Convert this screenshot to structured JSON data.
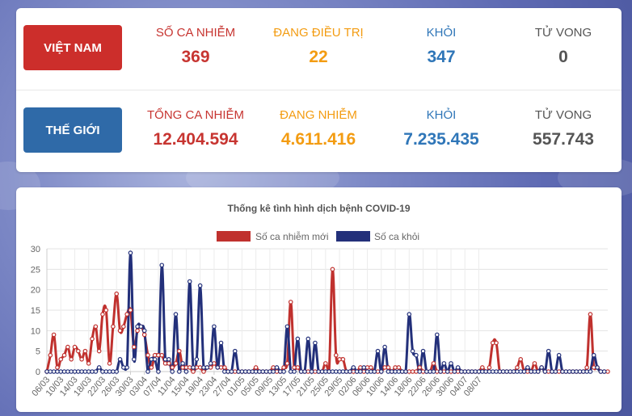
{
  "vietnam": {
    "label": "VIỆT NAM",
    "stats": [
      {
        "label": "SỐ CA NHIỄM",
        "value": "369"
      },
      {
        "label": "ĐANG ĐIỀU TRỊ",
        "value": "22"
      },
      {
        "label": "KHỎI",
        "value": "347"
      },
      {
        "label": "TỬ VONG",
        "value": "0"
      }
    ]
  },
  "world": {
    "label": "THẾ GIỚI",
    "stats": [
      {
        "label": "TỔNG CA NHIỄM",
        "value": "12.404.594"
      },
      {
        "label": "ĐANG NHIỄM",
        "value": "4.611.416"
      },
      {
        "label": "KHỎI",
        "value": "7.235.435"
      },
      {
        "label": "TỬ VONG",
        "value": "557.743"
      }
    ]
  },
  "colors": {
    "red": "#c73531",
    "orange": "#f39c12",
    "blue": "#2f76b8",
    "gray": "#555555",
    "series_new": "#c0312e",
    "series_recovered": "#23307a"
  },
  "chart_data": {
    "type": "line",
    "title": "Thống kê tình hình dịch bệnh COVID-19",
    "legend_position": "top",
    "grid": true,
    "ylim": [
      0,
      30
    ],
    "yticks": [
      0,
      5,
      10,
      15,
      20,
      25,
      30
    ],
    "xtick_labels": [
      "06/03",
      "10/03",
      "14/03",
      "18/03",
      "22/03",
      "26/03",
      "30/03",
      "03/04",
      "07/04",
      "11/04",
      "15/04",
      "19/04",
      "23/04",
      "27/04",
      "01/05",
      "05/05",
      "09/05",
      "13/05",
      "17/05",
      "21/05",
      "25/05",
      "29/05",
      "02/06",
      "06/06",
      "10/06",
      "14/06",
      "18/06",
      "22/06",
      "26/06",
      "30/06",
      "04/07",
      "08/07"
    ],
    "series": [
      {
        "name": "Số ca nhiễm mới",
        "color": "#c0312e",
        "values": [
          0,
          4,
          9,
          1,
          3,
          4,
          6,
          3,
          6,
          5,
          3,
          5,
          2,
          8,
          11,
          5,
          14,
          15,
          2,
          11,
          19,
          10,
          11,
          14,
          15,
          6,
          10,
          11,
          9,
          4,
          1,
          4,
          4,
          4,
          2,
          2,
          1,
          2,
          5,
          1,
          1,
          1,
          0,
          1,
          1,
          0,
          1,
          1,
          2,
          1,
          1,
          1,
          0,
          0,
          0,
          0,
          0,
          0,
          0,
          0,
          1,
          0,
          0,
          0,
          0,
          1,
          0,
          0,
          1,
          2,
          17,
          1,
          1,
          0,
          0,
          0,
          0,
          0,
          0,
          0,
          2,
          0,
          25,
          4,
          3,
          3,
          0,
          0,
          0,
          0,
          1,
          0,
          1,
          1,
          0,
          0,
          0,
          1,
          1,
          0,
          1,
          1,
          0,
          0,
          0,
          0,
          0,
          1,
          0,
          0,
          0,
          2,
          0,
          0,
          0,
          0,
          0,
          0,
          0,
          0,
          0,
          0,
          0,
          0,
          0,
          1,
          0,
          1,
          7,
          7,
          0,
          0,
          0,
          0,
          0,
          1,
          3,
          0,
          0,
          0,
          2,
          0,
          1,
          0,
          0,
          0,
          0,
          0,
          0,
          0,
          0,
          0,
          0,
          0,
          0,
          1,
          14,
          1,
          1,
          0,
          0,
          0
        ]
      },
      {
        "name": "Số ca khỏi",
        "color": "#23307a",
        "values": [
          0,
          0,
          0,
          0,
          0,
          0,
          0,
          0,
          0,
          0,
          0,
          0,
          0,
          0,
          0,
          1,
          0,
          0,
          0,
          0,
          0,
          3,
          1,
          1,
          29,
          3,
          11,
          11,
          10,
          0,
          3,
          3,
          0,
          26,
          3,
          3,
          0,
          14,
          0,
          2,
          0,
          22,
          1,
          3,
          21,
          1,
          1,
          2,
          11,
          1,
          7,
          0,
          0,
          0,
          5,
          0,
          0,
          0,
          0,
          0,
          0,
          0,
          0,
          0,
          0,
          0,
          1,
          0,
          0,
          11,
          0,
          0,
          8,
          0,
          0,
          8,
          0,
          7,
          0,
          0,
          0,
          0,
          0,
          0,
          0,
          0,
          0,
          0,
          1,
          0,
          0,
          1,
          0,
          0,
          0,
          5,
          0,
          6,
          0,
          0,
          0,
          0,
          0,
          0,
          14,
          5,
          4,
          0,
          5,
          0,
          0,
          0,
          9,
          0,
          2,
          0,
          2,
          0,
          1,
          0,
          0,
          0,
          0,
          0,
          0,
          0,
          0,
          0,
          0,
          0,
          0,
          0,
          0,
          0,
          0,
          0,
          0,
          0,
          1,
          0,
          0,
          0,
          1,
          0,
          5,
          0,
          0,
          4,
          0,
          0,
          0,
          0,
          0,
          0,
          0,
          0,
          0,
          4,
          1,
          0,
          0
        ]
      }
    ]
  }
}
